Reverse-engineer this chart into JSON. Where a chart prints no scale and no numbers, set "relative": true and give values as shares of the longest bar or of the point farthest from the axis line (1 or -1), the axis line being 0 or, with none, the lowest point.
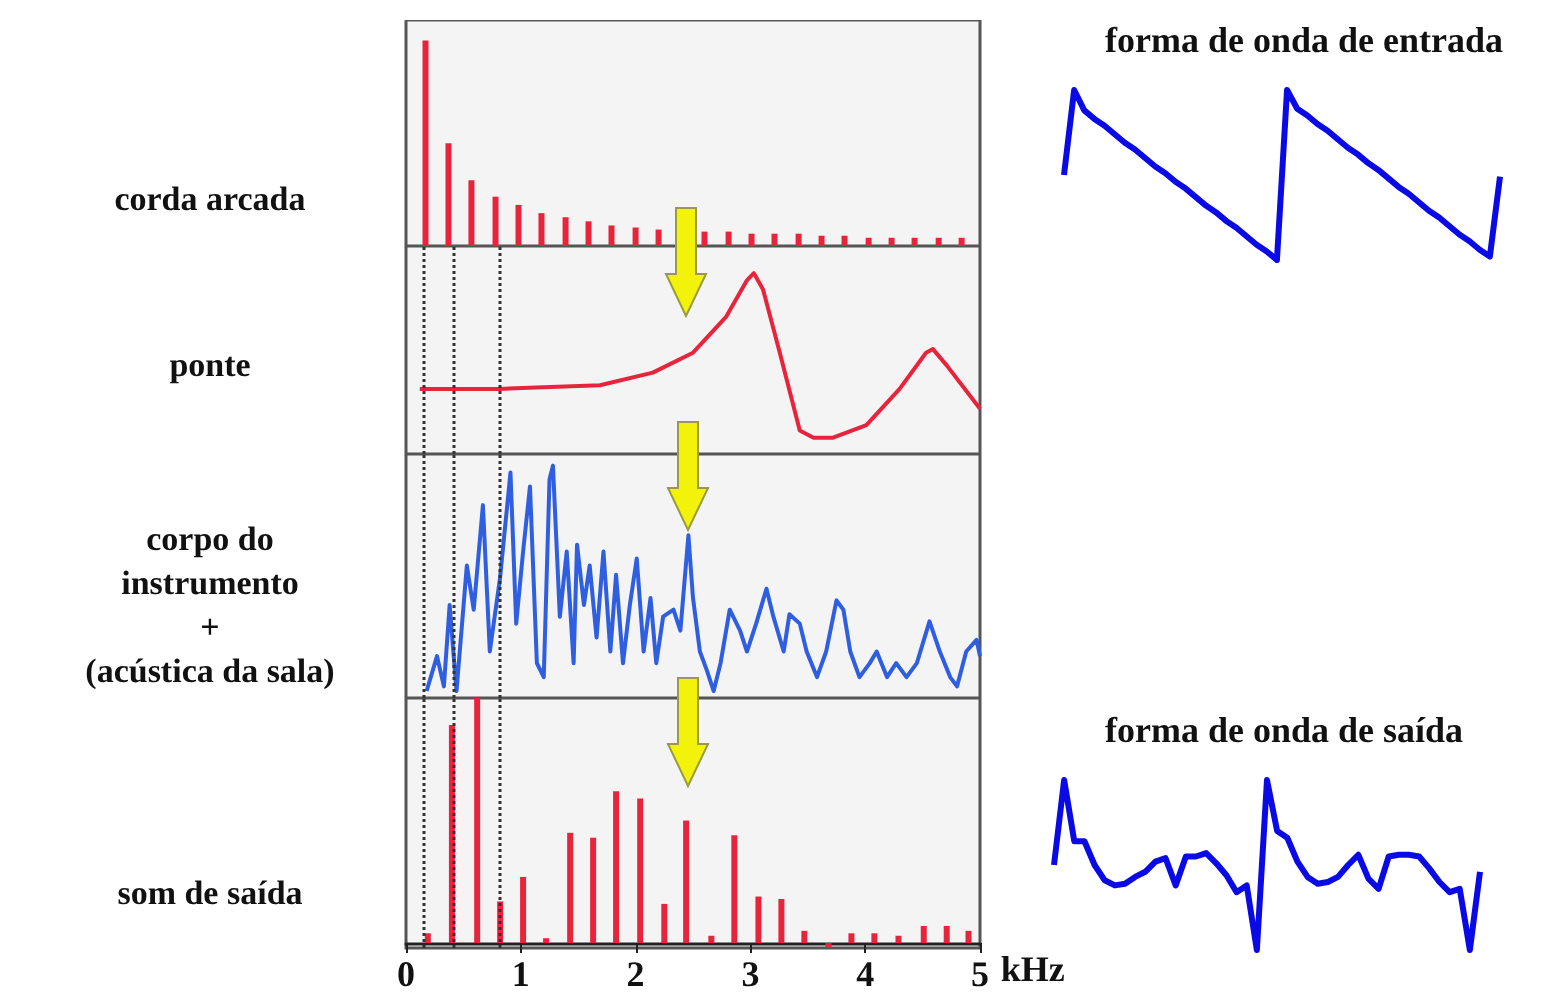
{
  "chart_data": [
    {
      "type": "bar",
      "ylabel": "corda arcada",
      "relative": true,
      "xlim": [
        0,
        5
      ],
      "tick_labels": false,
      "series": [
        {
          "color": "#e8243c",
          "x": [
            0.17,
            0.37,
            0.57,
            0.78,
            0.98,
            1.18,
            1.39,
            1.59,
            1.79,
            2.0,
            2.2,
            2.4,
            2.6,
            2.81,
            3.01,
            3.21,
            3.42,
            3.62,
            3.82,
            4.03,
            4.23,
            4.43,
            4.64,
            4.84
          ],
          "values": [
            1,
            0.5,
            0.32,
            0.24,
            0.2,
            0.16,
            0.14,
            0.12,
            0.1,
            0.09,
            0.08,
            null,
            0.07,
            0.07,
            0.06,
            0.06,
            0.06,
            0.05,
            0.05,
            0.04,
            0.04,
            0.04,
            0.04,
            0.04
          ]
        }
      ]
    },
    {
      "type": "line",
      "ylabel": "ponte",
      "relative": true,
      "xlim": [
        0,
        5
      ],
      "tick_labels": false,
      "series": [
        {
          "color": "#e8243c",
          "x": [
            0.12,
            0.82,
            1.69,
            2.15,
            2.5,
            2.79,
            2.97,
            3.03,
            3.11,
            3.26,
            3.43,
            3.55,
            3.72,
            4.01,
            4.3,
            4.53,
            4.59,
            4.71,
            5
          ],
          "values": [
            0.36,
            0.36,
            0.38,
            0.45,
            0.56,
            0.76,
            0.96,
            1,
            0.91,
            0.55,
            0.13,
            0.09,
            0.09,
            0.16,
            0.36,
            0.56,
            0.58,
            0.49,
            0.25
          ]
        }
      ],
      "ref_lines": [
        {
          "axis": "x",
          "value": 0.15,
          "color": "#333333",
          "line_style": "dotted"
        },
        {
          "axis": "x",
          "value": 0.41,
          "color": "#333333",
          "line_style": "dotted"
        },
        {
          "axis": "x",
          "value": 0.81,
          "color": "#333333",
          "line_style": "dotted"
        }
      ]
    },
    {
      "type": "line",
      "ylabel": "corpo do\ninstrumento\n+\n(acústica da sala)",
      "relative": true,
      "xlim": [
        0,
        5
      ],
      "tick_labels": false,
      "series": [
        {
          "color": "#2f5fe0",
          "x": [
            0.18,
            0.27,
            0.33,
            0.38,
            0.44,
            0.53,
            0.59,
            0.67,
            0.73,
            0.82,
            0.91,
            0.96,
            1.02,
            1.08,
            1.14,
            1.2,
            1.25,
            1.28,
            1.34,
            1.4,
            1.46,
            1.49,
            1.55,
            1.6,
            1.66,
            1.72,
            1.78,
            1.83,
            1.89,
            1.95,
            2.01,
            2.07,
            2.13,
            2.18,
            2.24,
            2.33,
            2.39,
            2.46,
            2.5,
            2.56,
            2.62,
            2.68,
            2.74,
            2.82,
            2.91,
            2.97,
            3.05,
            3.14,
            3.2,
            3.29,
            3.34,
            3.43,
            3.49,
            3.58,
            3.66,
            3.75,
            3.81,
            3.87,
            3.95,
            4.04,
            4.1,
            4.19,
            4.27,
            4.36,
            4.45,
            4.56,
            4.65,
            4.74,
            4.8,
            4.88,
            4.97,
            5
          ],
          "values": [
            0.03,
            0.18,
            0.05,
            0.4,
            0.03,
            0.57,
            0.38,
            0.83,
            0.2,
            0.52,
            0.97,
            0.32,
            0.63,
            0.91,
            0.15,
            0.09,
            0.94,
            1,
            0.35,
            0.63,
            0.15,
            0.66,
            0.4,
            0.57,
            0.26,
            0.63,
            0.2,
            0.53,
            0.15,
            0.4,
            0.6,
            0.2,
            0.43,
            0.15,
            0.35,
            0.38,
            0.29,
            0.7,
            0.43,
            0.2,
            0.12,
            0.03,
            0.15,
            0.38,
            0.29,
            0.2,
            0.32,
            0.47,
            0.35,
            0.2,
            0.36,
            0.32,
            0.2,
            0.09,
            0.2,
            0.42,
            0.38,
            0.2,
            0.09,
            0.15,
            0.2,
            0.09,
            0.15,
            0.09,
            0.15,
            0.33,
            0.2,
            0.09,
            0.05,
            0.2,
            0.25,
            0.18
          ]
        }
      ],
      "ref_lines": [
        {
          "axis": "x",
          "value": 0.15,
          "color": "#333333",
          "line_style": "dotted"
        },
        {
          "axis": "x",
          "value": 0.41,
          "color": "#333333",
          "line_style": "dotted"
        },
        {
          "axis": "x",
          "value": 0.81,
          "color": "#333333",
          "line_style": "dotted"
        }
      ]
    },
    {
      "type": "bar",
      "ylabel": "som de saída",
      "xlabel": "kHz",
      "relative": true,
      "xlim": [
        0,
        5
      ],
      "xticks": [
        0,
        1,
        2,
        3,
        4,
        5
      ],
      "series": [
        {
          "color": "#e8243c",
          "x": [
            0.19,
            0.4,
            0.62,
            0.82,
            1.02,
            1.22,
            1.43,
            1.63,
            1.83,
            2.04,
            2.25,
            2.44,
            2.66,
            2.86,
            3.07,
            3.27,
            3.47,
            3.68,
            3.88,
            4.08,
            4.29,
            4.51,
            4.71,
            4.9
          ],
          "values": [
            0.04,
            0.89,
            1,
            0.17,
            0.27,
            0.02,
            0.45,
            0.43,
            0.62,
            0.59,
            0.16,
            0.5,
            0.03,
            0.44,
            0.19,
            0.18,
            0.05,
            -0.02,
            0.04,
            0.04,
            0.03,
            0.07,
            0.07,
            0.05
          ]
        }
      ],
      "ref_lines": [
        {
          "axis": "x",
          "value": 0.15,
          "color": "#333333",
          "line_style": "dotted"
        },
        {
          "axis": "x",
          "value": 0.41,
          "color": "#333333",
          "line_style": "dotted"
        },
        {
          "axis": "x",
          "value": 0.81,
          "color": "#333333",
          "line_style": "dotted"
        }
      ]
    },
    {
      "type": "line",
      "title": "forma de onda de entrada",
      "relative": true,
      "tick_labels": false,
      "categories": [
        null,
        null,
        null,
        null,
        null,
        null,
        null,
        null,
        null,
        null,
        null,
        null,
        null,
        null,
        null,
        null,
        null,
        null,
        null,
        null,
        null,
        null,
        null,
        null,
        null,
        null,
        null,
        null,
        null,
        null,
        null,
        null,
        null,
        null,
        null,
        null,
        null,
        null,
        null,
        null,
        null,
        null,
        null,
        null
      ],
      "series": [
        {
          "color": "#0a0ae6",
          "values": [
            0.5,
            1,
            0.88,
            0.83,
            0.79,
            0.74,
            0.69,
            0.65,
            0.6,
            0.55,
            0.51,
            0.46,
            0.42,
            0.37,
            0.32,
            0.28,
            0.23,
            0.19,
            0.14,
            0.09,
            0.05,
            0,
            1,
            0.89,
            0.85,
            0.8,
            0.76,
            0.71,
            0.66,
            0.62,
            0.57,
            0.53,
            0.48,
            0.43,
            0.39,
            0.34,
            0.29,
            0.25,
            0.2,
            0.15,
            0.11,
            0.06,
            0.02,
            0.49
          ]
        }
      ]
    },
    {
      "type": "line",
      "title": "forma de onda de saída",
      "relative": true,
      "tick_labels": false,
      "categories": [
        null,
        null,
        null,
        null,
        null,
        null,
        null,
        null,
        null,
        null,
        null,
        null,
        null,
        null,
        null,
        null,
        null,
        null,
        null,
        null,
        null,
        null,
        null,
        null,
        null,
        null,
        null,
        null,
        null,
        null,
        null,
        null,
        null,
        null,
        null,
        null,
        null,
        null,
        null,
        null,
        null,
        null,
        null
      ],
      "series": [
        {
          "color": "#0a0ae6",
          "values": [
            0.5,
            1,
            0.64,
            0.64,
            0.5,
            0.41,
            0.38,
            0.39,
            0.43,
            0.46,
            0.52,
            0.54,
            0.38,
            0.55,
            0.55,
            0.57,
            0.51,
            0.44,
            0.34,
            0.38,
            0,
            1,
            0.7,
            0.66,
            0.52,
            0.43,
            0.39,
            0.4,
            0.43,
            0.5,
            0.56,
            0.42,
            0.36,
            0.55,
            0.56,
            0.56,
            0.55,
            0.48,
            0.4,
            0.34,
            0.36,
            0,
            0.46
          ]
        }
      ]
    }
  ]
}
